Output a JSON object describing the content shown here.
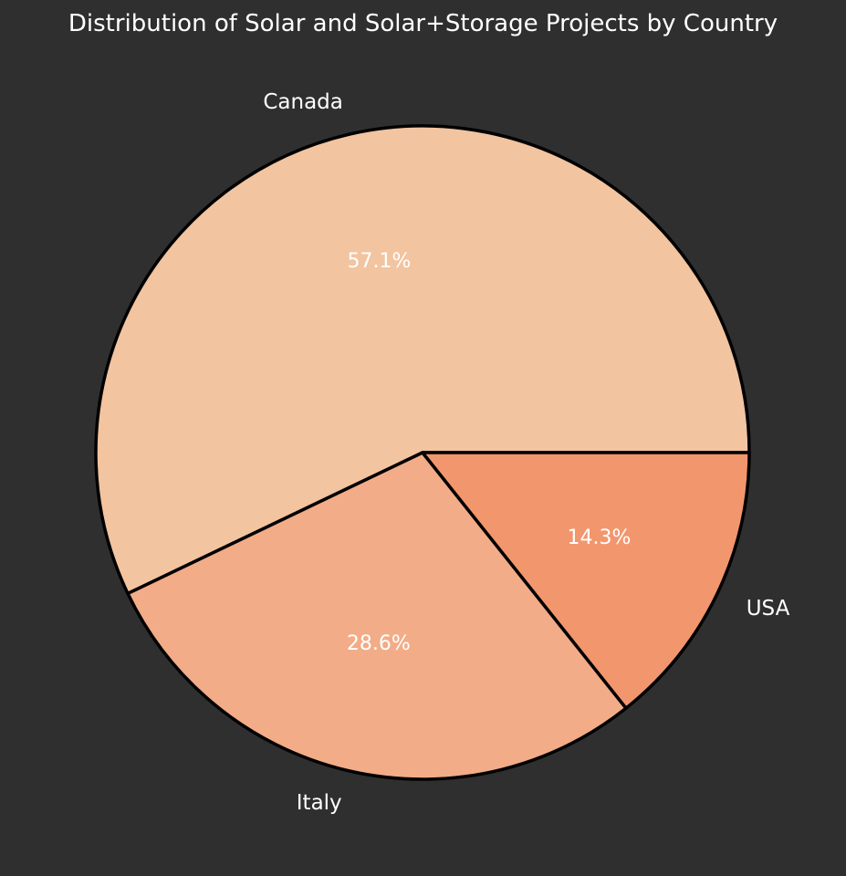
{
  "chart_data": {
    "type": "pie",
    "title": "Distribution of Solar and Solar+Storage Projects by Country",
    "slices": [
      {
        "label": "Canada",
        "value": 57.1,
        "pct_label": "57.1%",
        "color": "#f2c4a0"
      },
      {
        "label": "Italy",
        "value": 28.6,
        "pct_label": "28.6%",
        "color": "#f2ac87"
      },
      {
        "label": "USA",
        "value": 14.3,
        "pct_label": "14.3%",
        "color": "#f2966e"
      }
    ],
    "start_angle_deg": 0,
    "direction": "counterclockwise",
    "edge_color": "#000000",
    "background": "#2f2f2f",
    "text_color": "#ffffff"
  }
}
